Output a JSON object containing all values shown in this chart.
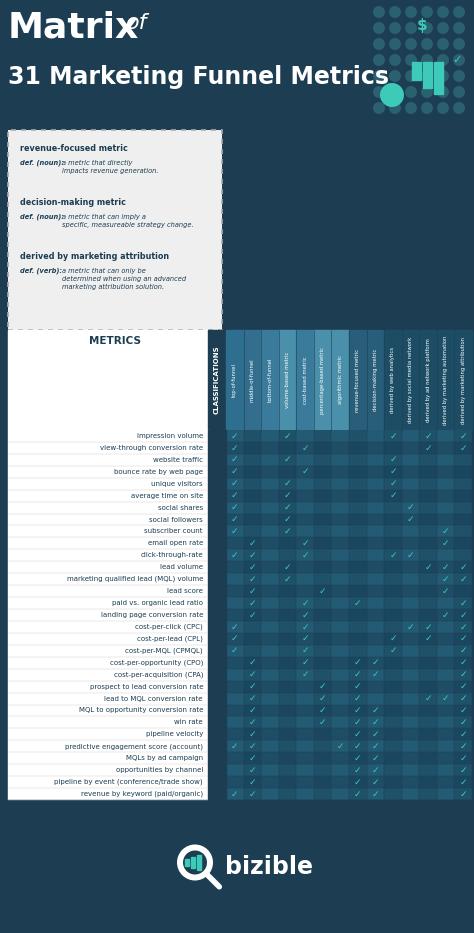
{
  "bg_color": "#1c3d52",
  "check_color": "#3dcab8",
  "col_header_colors": [
    "#2e6e8e",
    "#336e8e",
    "#3a7a9a",
    "#4a90aa",
    "#3a7a9a",
    "#4a90aa",
    "#4a90aa",
    "#285e7a",
    "#285e7a",
    "#1c4d65",
    "#1c4d65",
    "#1c4d65",
    "#1c4d65",
    "#1c4d65"
  ],
  "col_headers": [
    "top-of-funnel",
    "middle-of-funnel",
    "bottom-of-funnel",
    "volume-based metric",
    "cost-based metric",
    "percentage-based metric",
    "algorithmic metric",
    "revenue-focused metric",
    "decision-making metric",
    "derived by web analytics",
    "derived by social media network",
    "derived by ad network platform",
    "derived by marketing automation",
    "derived by marketing attribution"
  ],
  "metrics": [
    "impression volume",
    "view-through conversion rate",
    "website traffic",
    "bounce rate by web page",
    "unique visitors",
    "average time on site",
    "social shares",
    "social followers",
    "subscriber count",
    "email open rate",
    "click-through-rate",
    "lead volume",
    "marketing qualified lead (MQL) volume",
    "lead score",
    "paid vs. organic lead ratio",
    "landing page conversion rate",
    "cost-per-click (CPC)",
    "cost-per-lead (CPL)",
    "cost-per-MQL (CPMQL)",
    "cost-per-opportunity (CPO)",
    "cost-per-acquisition (CPA)",
    "prospect to lead conversion rate",
    "lead to MQL conversion rate",
    "MQL to opportunity conversion rate",
    "win rate",
    "pipeline velocity",
    "predictive engagement score (account)",
    "MQLs by ad campaign",
    "opportunities by channel",
    "pipeline by event (conference/trade show)",
    "revenue by keyword (paid/organic)"
  ],
  "checks": [
    [
      1,
      0,
      0,
      1,
      0,
      0,
      0,
      0,
      0,
      1,
      0,
      1,
      0,
      1
    ],
    [
      1,
      0,
      0,
      0,
      1,
      0,
      0,
      0,
      0,
      0,
      0,
      1,
      0,
      1
    ],
    [
      1,
      0,
      0,
      1,
      0,
      0,
      0,
      0,
      0,
      1,
      0,
      0,
      0,
      0
    ],
    [
      1,
      0,
      0,
      0,
      1,
      0,
      0,
      0,
      0,
      1,
      0,
      0,
      0,
      0
    ],
    [
      1,
      0,
      0,
      1,
      0,
      0,
      0,
      0,
      0,
      1,
      0,
      0,
      0,
      0
    ],
    [
      1,
      0,
      0,
      1,
      0,
      0,
      0,
      0,
      0,
      1,
      0,
      0,
      0,
      0
    ],
    [
      1,
      0,
      0,
      1,
      0,
      0,
      0,
      0,
      0,
      0,
      1,
      0,
      0,
      0
    ],
    [
      1,
      0,
      0,
      1,
      0,
      0,
      0,
      0,
      0,
      0,
      1,
      0,
      0,
      0
    ],
    [
      1,
      0,
      0,
      1,
      0,
      0,
      0,
      0,
      0,
      0,
      0,
      0,
      1,
      0
    ],
    [
      0,
      1,
      0,
      0,
      1,
      0,
      0,
      0,
      0,
      0,
      0,
      0,
      1,
      0
    ],
    [
      1,
      1,
      0,
      0,
      1,
      0,
      0,
      0,
      0,
      1,
      1,
      0,
      0,
      0
    ],
    [
      0,
      1,
      0,
      1,
      0,
      0,
      0,
      0,
      0,
      0,
      0,
      1,
      1,
      1
    ],
    [
      0,
      1,
      0,
      1,
      0,
      0,
      0,
      0,
      0,
      0,
      0,
      0,
      1,
      1
    ],
    [
      0,
      1,
      0,
      0,
      0,
      1,
      0,
      0,
      0,
      0,
      0,
      0,
      1,
      0
    ],
    [
      0,
      1,
      0,
      0,
      1,
      0,
      0,
      1,
      0,
      0,
      0,
      0,
      0,
      1
    ],
    [
      0,
      1,
      0,
      0,
      1,
      0,
      0,
      0,
      0,
      0,
      0,
      0,
      1,
      1
    ],
    [
      1,
      0,
      0,
      0,
      1,
      0,
      0,
      0,
      0,
      0,
      1,
      1,
      0,
      1
    ],
    [
      1,
      0,
      0,
      0,
      1,
      0,
      0,
      0,
      0,
      1,
      0,
      1,
      0,
      1
    ],
    [
      1,
      0,
      0,
      0,
      1,
      0,
      0,
      0,
      0,
      1,
      0,
      0,
      0,
      1
    ],
    [
      0,
      1,
      0,
      0,
      1,
      0,
      0,
      1,
      1,
      0,
      0,
      0,
      0,
      1
    ],
    [
      0,
      1,
      0,
      0,
      1,
      0,
      0,
      1,
      1,
      0,
      0,
      0,
      0,
      1
    ],
    [
      0,
      1,
      0,
      0,
      0,
      1,
      0,
      1,
      0,
      0,
      0,
      0,
      0,
      1
    ],
    [
      0,
      1,
      0,
      0,
      0,
      1,
      0,
      1,
      0,
      0,
      0,
      1,
      1,
      1
    ],
    [
      0,
      1,
      0,
      0,
      0,
      1,
      0,
      1,
      1,
      0,
      0,
      0,
      0,
      1
    ],
    [
      0,
      1,
      0,
      0,
      0,
      1,
      0,
      1,
      1,
      0,
      0,
      0,
      0,
      1
    ],
    [
      0,
      1,
      0,
      0,
      0,
      0,
      0,
      1,
      1,
      0,
      0,
      0,
      0,
      1
    ],
    [
      1,
      1,
      0,
      0,
      0,
      0,
      1,
      1,
      1,
      0,
      0,
      0,
      0,
      1
    ],
    [
      0,
      1,
      0,
      0,
      0,
      0,
      0,
      1,
      1,
      0,
      0,
      0,
      0,
      1
    ],
    [
      0,
      1,
      0,
      0,
      0,
      0,
      0,
      1,
      1,
      0,
      0,
      0,
      0,
      1
    ],
    [
      0,
      1,
      0,
      0,
      0,
      0,
      0,
      1,
      1,
      0,
      0,
      0,
      0,
      1
    ],
    [
      1,
      1,
      0,
      0,
      0,
      0,
      0,
      1,
      1,
      0,
      0,
      0,
      0,
      1
    ]
  ],
  "legend_items": [
    {
      "term": "revenue-focused metric",
      "def_label": "def. (noun):",
      "def_text": "a metric that directly\nimpacts revenue generation."
    },
    {
      "term": "decision-making metric",
      "def_label": "def. (noun):",
      "def_text": "a metric that can imply a\nspecific, measureable strategy change."
    },
    {
      "term": "derived by marketing attribution",
      "def_label": "def. (verb):",
      "def_text": "a metric that can only be\ndetermined when using an advanced\nmarketing attribution solution."
    }
  ]
}
